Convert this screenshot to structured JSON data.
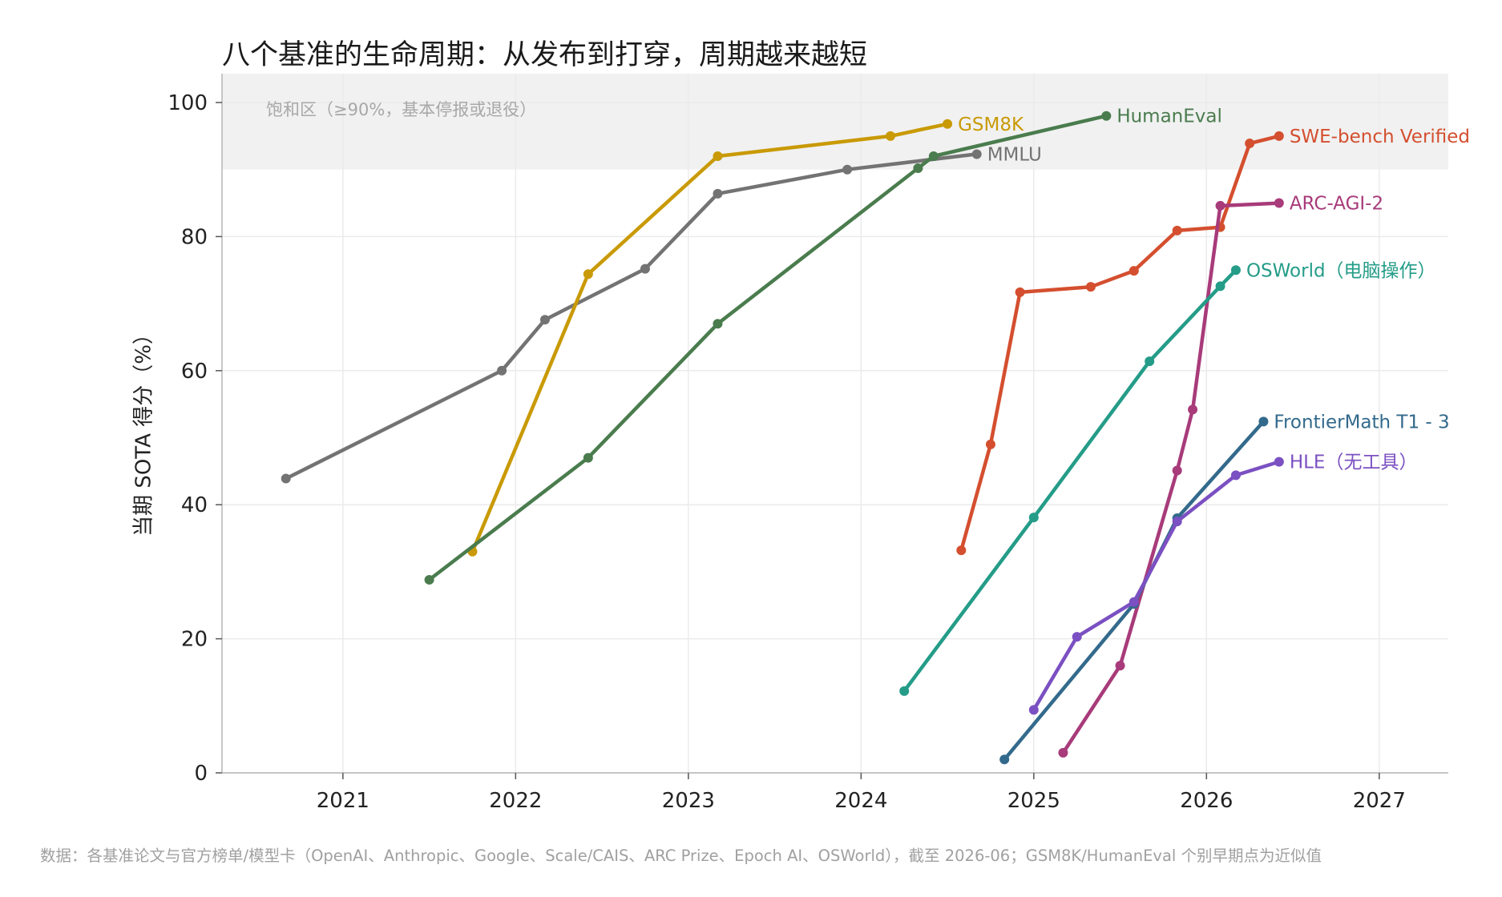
{
  "title": "八个基准的生命周期：从发布到打穿，周期越来越短",
  "source": "数据：各基准论文与官方榜单/模型卡（OpenAI、Anthropic、Google、Scale/CAIS、ARC Prize、Epoch AI、OSWorld），截至 2026-06；GSM8K/HumanEval 个别早期点为近似值",
  "chart_data": {
    "type": "line",
    "title": "八个基准的生命周期：从发布到打穿，周期越来越短",
    "ylabel": "当期 SOTA 得分（%）",
    "xlabel": "",
    "xlim": [
      2020.3,
      2027.4
    ],
    "ylim": [
      0,
      104
    ],
    "x_ticks": [
      2021,
      2022,
      2023,
      2024,
      2025,
      2026,
      2027
    ],
    "y_ticks": [
      0,
      20,
      40,
      60,
      80,
      100
    ],
    "grid": true,
    "annotation": {
      "text": "饱和区（≥90%，基本停报或退役）",
      "band": [
        90,
        104
      ],
      "band_color": "#f1f1f1"
    },
    "series": [
      {
        "name": "MMLU",
        "color": "#737373",
        "points": [
          [
            2020.67,
            43.9
          ],
          [
            2021.92,
            60.0
          ],
          [
            2022.17,
            67.6
          ],
          [
            2022.75,
            75.2
          ],
          [
            2023.17,
            86.4
          ],
          [
            2023.92,
            90.0
          ],
          [
            2024.67,
            92.3
          ]
        ]
      },
      {
        "name": "GSM8K",
        "color": "#c99a06",
        "points": [
          [
            2021.75,
            33.0
          ],
          [
            2022.42,
            74.4
          ],
          [
            2023.17,
            92.0
          ],
          [
            2024.17,
            95.0
          ],
          [
            2024.5,
            96.8
          ]
        ]
      },
      {
        "name": "HumanEval",
        "color": "#4a7c4e",
        "points": [
          [
            2021.5,
            28.8
          ],
          [
            2022.42,
            47.0
          ],
          [
            2023.17,
            67.0
          ],
          [
            2024.33,
            90.2
          ],
          [
            2024.42,
            92.0
          ],
          [
            2025.42,
            98.0
          ]
        ]
      },
      {
        "name": "SWE-bench Verified",
        "color": "#d44f2f",
        "points": [
          [
            2024.58,
            33.2
          ],
          [
            2024.75,
            49.0
          ],
          [
            2024.92,
            71.7
          ],
          [
            2025.33,
            72.5
          ],
          [
            2025.58,
            74.9
          ],
          [
            2025.83,
            80.9
          ],
          [
            2026.08,
            81.4
          ],
          [
            2026.25,
            93.9
          ],
          [
            2026.42,
            95.0
          ]
        ]
      },
      {
        "name": "ARC-AGI-2",
        "color": "#a83b7a",
        "points": [
          [
            2025.17,
            3.0
          ],
          [
            2025.5,
            16.0
          ],
          [
            2025.83,
            45.1
          ],
          [
            2025.92,
            54.2
          ],
          [
            2026.08,
            84.6
          ],
          [
            2026.42,
            85.0
          ]
        ]
      },
      {
        "name": "OSWorld（电脑操作）",
        "color": "#249c88",
        "points": [
          [
            2024.25,
            12.2
          ],
          [
            2025.0,
            38.1
          ],
          [
            2025.67,
            61.4
          ],
          [
            2026.08,
            72.6
          ],
          [
            2026.17,
            75.0
          ]
        ]
      },
      {
        "name": "FrontierMath T1 - 3",
        "color": "#336a8c",
        "points": [
          [
            2024.83,
            2.0
          ],
          [
            2025.58,
            25.2
          ],
          [
            2025.83,
            38.0
          ],
          [
            2026.33,
            52.4
          ]
        ]
      },
      {
        "name": "HLE（无工具）",
        "color": "#7b50c2",
        "points": [
          [
            2025.0,
            9.4
          ],
          [
            2025.25,
            20.3
          ],
          [
            2025.58,
            25.5
          ],
          [
            2025.83,
            37.5
          ],
          [
            2026.17,
            44.4
          ],
          [
            2026.42,
            46.4
          ]
        ]
      }
    ]
  }
}
